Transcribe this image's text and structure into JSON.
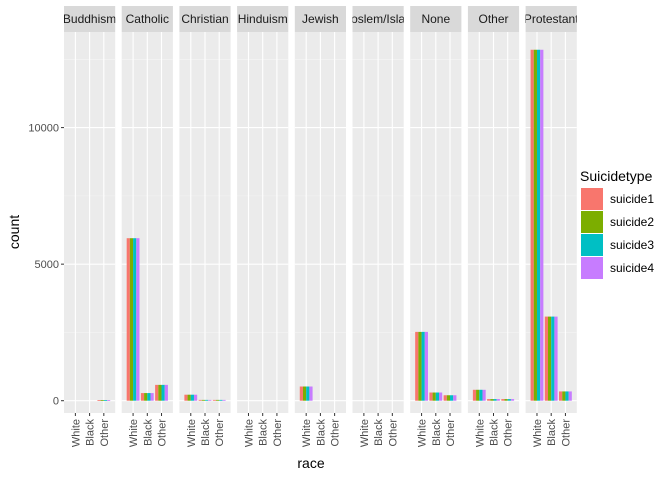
{
  "chart_data": {
    "type": "bar",
    "facet_by": "religion",
    "facets": [
      "Buddhism",
      "Catholic",
      "Christian",
      "Hinduism",
      "Jewish",
      "Moslem/Islam",
      "None",
      "Other",
      "Protestant"
    ],
    "categories": [
      "White",
      "Black",
      "Other"
    ],
    "xlabel": "race",
    "ylabel": "count",
    "ylim": [
      -450,
      13500
    ],
    "yticks": [
      0,
      5000,
      10000
    ],
    "legend": {
      "title": "Suicidetype",
      "position": "right",
      "entries": [
        "suicide1",
        "suicide2",
        "suicide3",
        "suicide4"
      ]
    },
    "colors": [
      "#F8766D",
      "#7CAE00",
      "#00BFC4",
      "#C77CFF"
    ],
    "grid": true,
    "series": [
      {
        "name": "suicide1",
        "values": [
          [
            0,
            0,
            20
          ],
          [
            5950,
            280,
            580
          ],
          [
            220,
            30,
            30
          ],
          [
            0,
            0,
            0
          ],
          [
            520,
            0,
            0
          ],
          [
            0,
            0,
            0
          ],
          [
            2520,
            300,
            200
          ],
          [
            400,
            60,
            60
          ],
          [
            12850,
            3080,
            340
          ]
        ]
      },
      {
        "name": "suicide2",
        "values": [
          [
            0,
            0,
            20
          ],
          [
            5950,
            280,
            580
          ],
          [
            220,
            30,
            30
          ],
          [
            0,
            0,
            0
          ],
          [
            520,
            0,
            0
          ],
          [
            0,
            0,
            0
          ],
          [
            2520,
            300,
            200
          ],
          [
            400,
            60,
            60
          ],
          [
            12850,
            3080,
            340
          ]
        ]
      },
      {
        "name": "suicide3",
        "values": [
          [
            0,
            0,
            20
          ],
          [
            5950,
            280,
            580
          ],
          [
            220,
            30,
            30
          ],
          [
            0,
            0,
            0
          ],
          [
            520,
            0,
            0
          ],
          [
            0,
            0,
            0
          ],
          [
            2520,
            300,
            200
          ],
          [
            400,
            60,
            60
          ],
          [
            12850,
            3080,
            340
          ]
        ]
      },
      {
        "name": "suicide4",
        "values": [
          [
            0,
            0,
            20
          ],
          [
            5950,
            280,
            580
          ],
          [
            220,
            30,
            30
          ],
          [
            0,
            0,
            0
          ],
          [
            520,
            0,
            0
          ],
          [
            0,
            0,
            0
          ],
          [
            2520,
            300,
            200
          ],
          [
            400,
            60,
            60
          ],
          [
            12850,
            3080,
            340
          ]
        ]
      }
    ]
  }
}
